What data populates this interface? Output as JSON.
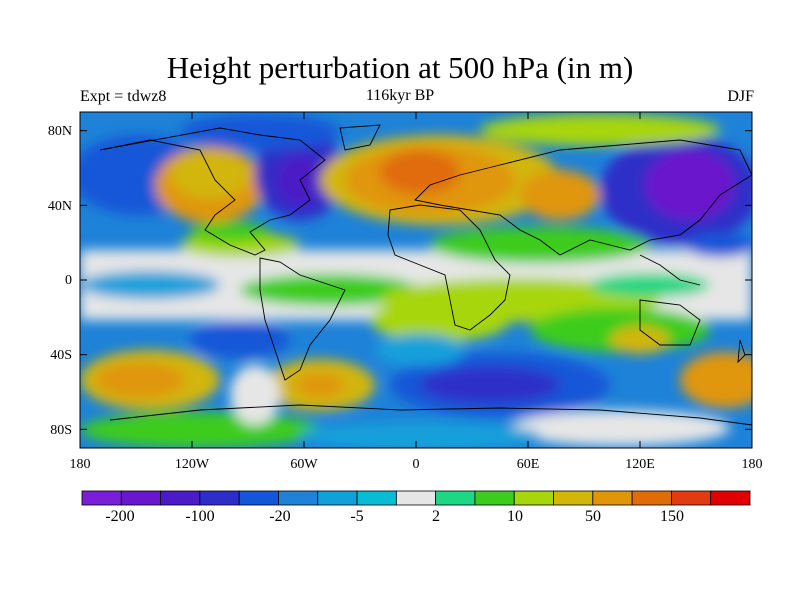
{
  "title": "Height perturbation at 500 hPa (in m)",
  "left_subtitle": "Expt = tdwz8",
  "center_subtitle": "116kyr BP",
  "right_subtitle": "DJF",
  "lat_labels": [
    "80N",
    "40N",
    "0",
    "40S",
    "80S"
  ],
  "lon_labels": [
    "180",
    "120W",
    "60W",
    "0",
    "60E",
    "120E",
    "180"
  ],
  "colorbar": {
    "labels": [
      "-200",
      "-100",
      "-20",
      "-5",
      "2",
      "10",
      "50",
      "150"
    ],
    "colors": [
      "#7a1fd6",
      "#6a16cc",
      "#4b1cc6",
      "#2d2ec8",
      "#1456d8",
      "#1e82d8",
      "#12a0da",
      "#08bcd6",
      "#e6e6e6",
      "#1ed684",
      "#3ccc1e",
      "#a8d60e",
      "#d2b60a",
      "#e09608",
      "#e06c08",
      "#e03c10",
      "#e00000"
    ]
  },
  "palette": {
    "deep_blue": "#2d2ec8",
    "blue": "#1456d8",
    "mid_blue": "#1e82d8",
    "light_blue": "#12a0da",
    "cyan": "#08bcd6",
    "grey": "#e6e6e6",
    "green": "#3ccc1e",
    "lime": "#a8d60e",
    "yellow": "#d2b60a",
    "orange": "#e09608",
    "dark_orange": "#e06c08",
    "purple": "#6a16cc"
  }
}
